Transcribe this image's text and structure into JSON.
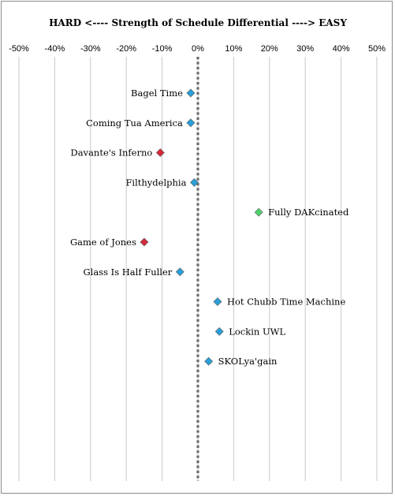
{
  "chart_data": {
    "type": "scatter",
    "title": "HARD <----  Strength of Schedule Differential  ----> EASY",
    "xlim": [
      -0.5,
      0.5
    ],
    "x_ticks": [
      {
        "value": -0.5,
        "label": "-50%"
      },
      {
        "value": -0.4,
        "label": "-40%"
      },
      {
        "value": -0.3,
        "label": "-30%"
      },
      {
        "value": -0.2,
        "label": "-20%"
      },
      {
        "value": -0.1,
        "label": "-10%"
      },
      {
        "value": 0.0,
        "label": "0%"
      },
      {
        "value": 0.1,
        "label": "10%"
      },
      {
        "value": 0.2,
        "label": "20%"
      },
      {
        "value": 0.3,
        "label": "30%"
      },
      {
        "value": 0.4,
        "label": "40%"
      },
      {
        "value": 0.5,
        "label": "50%"
      }
    ],
    "vertical_grid": true,
    "zero_line": "dotted",
    "colors": {
      "blue": "#2a9fd8",
      "red": "#d42a3c",
      "green": "#4fd06e"
    },
    "points": [
      {
        "label": "Bagel Time",
        "x": -0.02,
        "color": "blue",
        "label_side": "left"
      },
      {
        "label": "Coming Tua America",
        "x": -0.02,
        "color": "blue",
        "label_side": "left"
      },
      {
        "label": "Davante's Inferno",
        "x": -0.105,
        "color": "red",
        "label_side": "left"
      },
      {
        "label": "Filthydelphia",
        "x": -0.01,
        "color": "blue",
        "label_side": "left"
      },
      {
        "label": "Fully DAKcinated",
        "x": 0.17,
        "color": "green",
        "label_side": "right"
      },
      {
        "label": "Game of Jones",
        "x": -0.15,
        "color": "red",
        "label_side": "left"
      },
      {
        "label": "Glass Is Half Fuller",
        "x": -0.05,
        "color": "blue",
        "label_side": "left"
      },
      {
        "label": "Hot Chubb Time Machine",
        "x": 0.055,
        "color": "blue",
        "label_side": "right"
      },
      {
        "label": "Lockin UWL",
        "x": 0.06,
        "color": "blue",
        "label_side": "right"
      },
      {
        "label": "SKOLya'gain",
        "x": 0.03,
        "color": "blue",
        "label_side": "right"
      }
    ]
  }
}
